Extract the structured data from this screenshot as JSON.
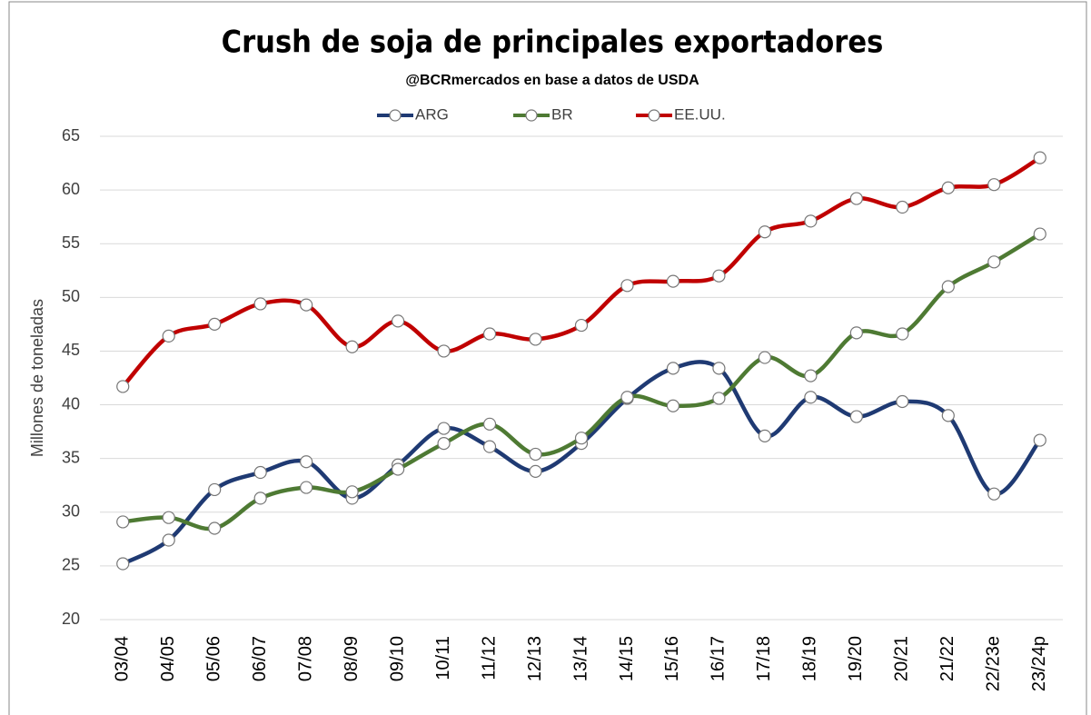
{
  "chart_data": {
    "type": "line",
    "title": "Crush de soja de principales exportadores",
    "subtitle": "@BCRmercados  en base a datos de USDA",
    "y_label": "Millones de toneladas",
    "categories": [
      "03/04",
      "04/05",
      "05/06",
      "06/07",
      "07/08",
      "08/09",
      "09/10",
      "10/11",
      "11/12",
      "12/13",
      "13/14",
      "14/15",
      "15/16",
      "16/17",
      "17/18",
      "18/19",
      "19/20",
      "20/21",
      "21/22",
      "22/23e",
      "23/24p"
    ],
    "series": [
      {
        "name": "ARG",
        "color": "#1f3a73",
        "values": [
          25.2,
          27.4,
          32.1,
          33.7,
          34.7,
          31.3,
          34.4,
          37.8,
          36.1,
          33.8,
          36.4,
          40.6,
          43.4,
          43.4,
          37.1,
          40.7,
          38.9,
          40.3,
          39.0,
          31.7,
          36.7
        ]
      },
      {
        "name": "BR",
        "color": "#4e7a33",
        "values": [
          29.1,
          29.5,
          28.5,
          31.3,
          32.3,
          31.9,
          34.0,
          36.4,
          38.2,
          35.4,
          36.9,
          40.7,
          39.9,
          40.6,
          44.4,
          42.7,
          46.7,
          46.6,
          51.0,
          53.3,
          55.9
        ]
      },
      {
        "name": "EE.UU.",
        "color": "#c00000",
        "values": [
          41.7,
          46.4,
          47.5,
          49.4,
          49.3,
          45.4,
          47.8,
          45.0,
          46.6,
          46.1,
          47.4,
          51.1,
          51.5,
          52.0,
          56.1,
          57.1,
          59.2,
          58.4,
          60.2,
          60.5,
          63.0
        ]
      }
    ],
    "ylim": [
      20,
      65
    ],
    "yticks": [
      20,
      25,
      30,
      35,
      40,
      45,
      50,
      55,
      60,
      65
    ],
    "grid": true
  }
}
